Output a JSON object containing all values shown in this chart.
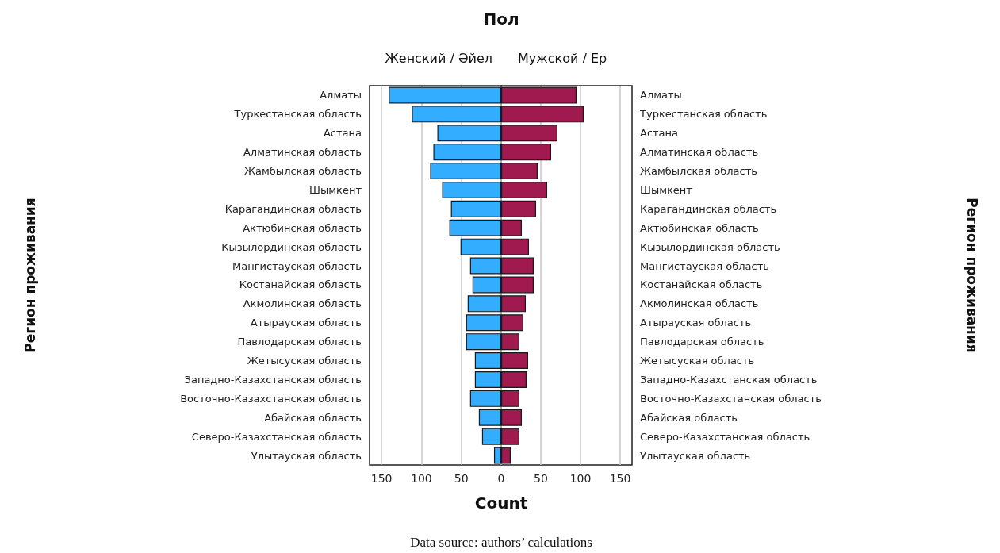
{
  "chart_data": [
    {
      "type": "bar",
      "orientation": "horizontal",
      "title": "Пол",
      "subtitle": "Женский / Әйел",
      "ylabel": "Регион проживания",
      "xlabel": "Count",
      "categories": [
        "Алматы",
        "Туркестанская область",
        "Астана",
        "Алматинская область",
        "Жамбылская область",
        "Шымкент",
        "Карагандинская область",
        "Актюбинская область",
        "Кызылординская область",
        "Мангистауская область",
        "Костанайская область",
        "Акмолинская область",
        "Атырауская область",
        "Павлодарская область",
        "Жетысуская область",
        "Западно-Казахстанская область",
        "Восточно-Казахстанская область",
        "Абайская область",
        "Северо-Казахстанская область",
        "Улытауская область"
      ],
      "series": [
        {
          "color": "#33adff",
          "values": [
            141,
            112,
            80,
            85,
            89,
            74,
            63,
            65,
            51,
            39,
            36,
            42,
            44,
            44,
            33,
            33,
            39,
            28,
            24,
            9
          ]
        }
      ],
      "xlim": [
        165,
        0
      ],
      "xticks": [
        150,
        100,
        50,
        0
      ],
      "grid": "x"
    },
    {
      "type": "bar",
      "orientation": "horizontal",
      "subtitle": "Мужской / Ер",
      "ylabel": "Регион проживания",
      "annotations": [
        "Data source: authors’ calculations"
      ],
      "categories": [
        "Алматы",
        "Туркестанская область",
        "Астана",
        "Алматинская область",
        "Жамбылская область",
        "Шымкент",
        "Карагандинская область",
        "Актюбинская область",
        "Кызылординская область",
        "Мангистауская область",
        "Костанайская область",
        "Акмолинская область",
        "Атырауская область",
        "Павлодарская область",
        "Жетысуская область",
        "Западно-Казахстанская область",
        "Восточно-Казахстанская область",
        "Абайская область",
        "Северо-Казахстанская область",
        "Улытауская область"
      ],
      "series": [
        {
          "color": "#a0194f",
          "values": [
            95,
            104,
            71,
            63,
            46,
            58,
            44,
            26,
            35,
            41,
            41,
            31,
            28,
            23,
            34,
            32,
            23,
            26,
            23,
            12
          ]
        }
      ],
      "xlim": [
        0,
        165
      ],
      "xticks": [
        {
          "value": 0,
          "label": null
        },
        50,
        100,
        150
      ],
      "grid": "x"
    }
  ]
}
